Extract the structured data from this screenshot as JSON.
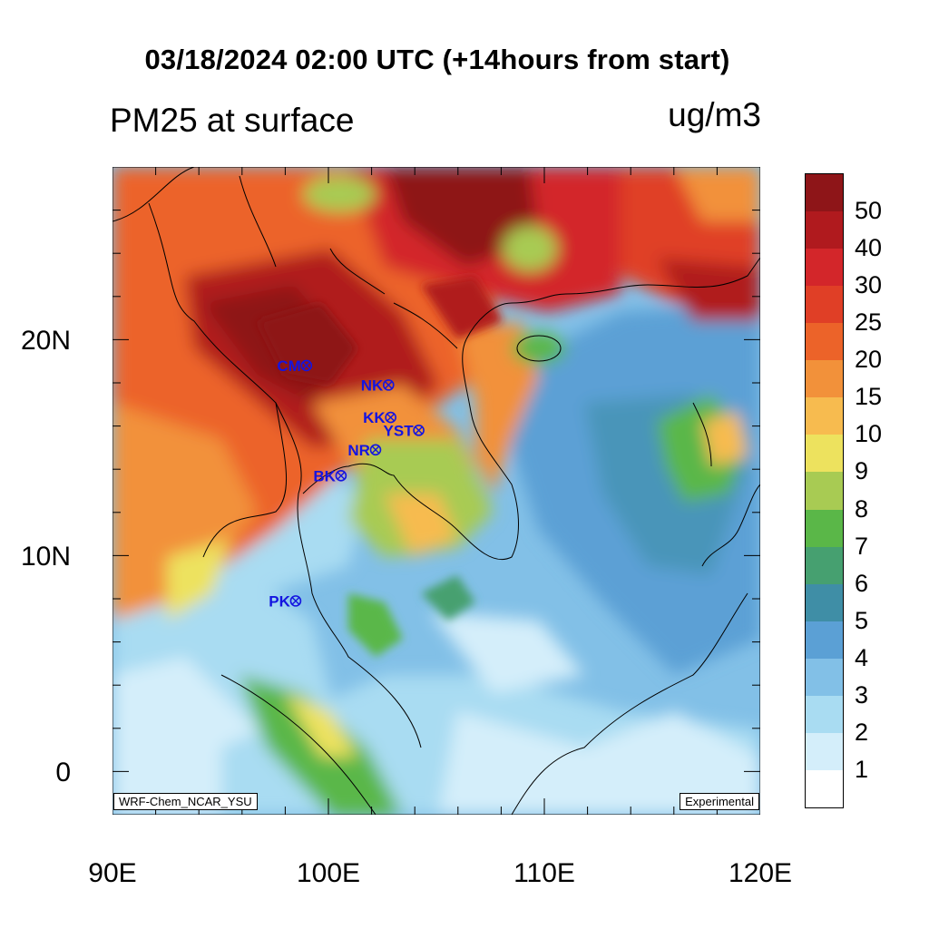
{
  "header": {
    "title": "03/18/2024 02:00 UTC (+14hours from start)",
    "left_label": "PM25 at surface",
    "right_label": "ug/m3"
  },
  "map": {
    "lat_labels": [
      "20N",
      "10N",
      "0"
    ],
    "lon_labels": [
      "90E",
      "100E",
      "110E",
      "120E"
    ],
    "extent": {
      "lon": [
        90,
        120
      ],
      "lat": [
        -2,
        28
      ]
    },
    "model_label": "WRF-Chem_NCAR_YSU",
    "status_label": "Experimental",
    "stations": [
      {
        "code": "CM",
        "lon": 98.9,
        "lat": 18.8
      },
      {
        "code": "NK",
        "lon": 102.7,
        "lat": 17.9
      },
      {
        "code": "KK",
        "lon": 102.8,
        "lat": 16.4
      },
      {
        "code": "YST",
        "lon": 104.1,
        "lat": 15.8
      },
      {
        "code": "NR",
        "lon": 102.1,
        "lat": 14.9
      },
      {
        "code": "BK",
        "lon": 100.5,
        "lat": 13.7
      },
      {
        "code": "PK",
        "lon": 98.4,
        "lat": 7.9
      }
    ]
  },
  "colorbar": {
    "levels": [
      "50",
      "40",
      "30",
      "25",
      "20",
      "15",
      "10",
      "9",
      "8",
      "7",
      "6",
      "5",
      "4",
      "3",
      "2",
      "1"
    ],
    "colors": [
      "#8e1518",
      "#b01a1e",
      "#d3262a",
      "#e03f26",
      "#ec6329",
      "#f2913a",
      "#f7bb4f",
      "#ede25e",
      "#a8cb53",
      "#5ab748",
      "#46a070",
      "#3f8ea6",
      "#5ba0d5",
      "#82c0e7",
      "#a9dcf2",
      "#d4eefa",
      "#ffffff"
    ]
  }
}
